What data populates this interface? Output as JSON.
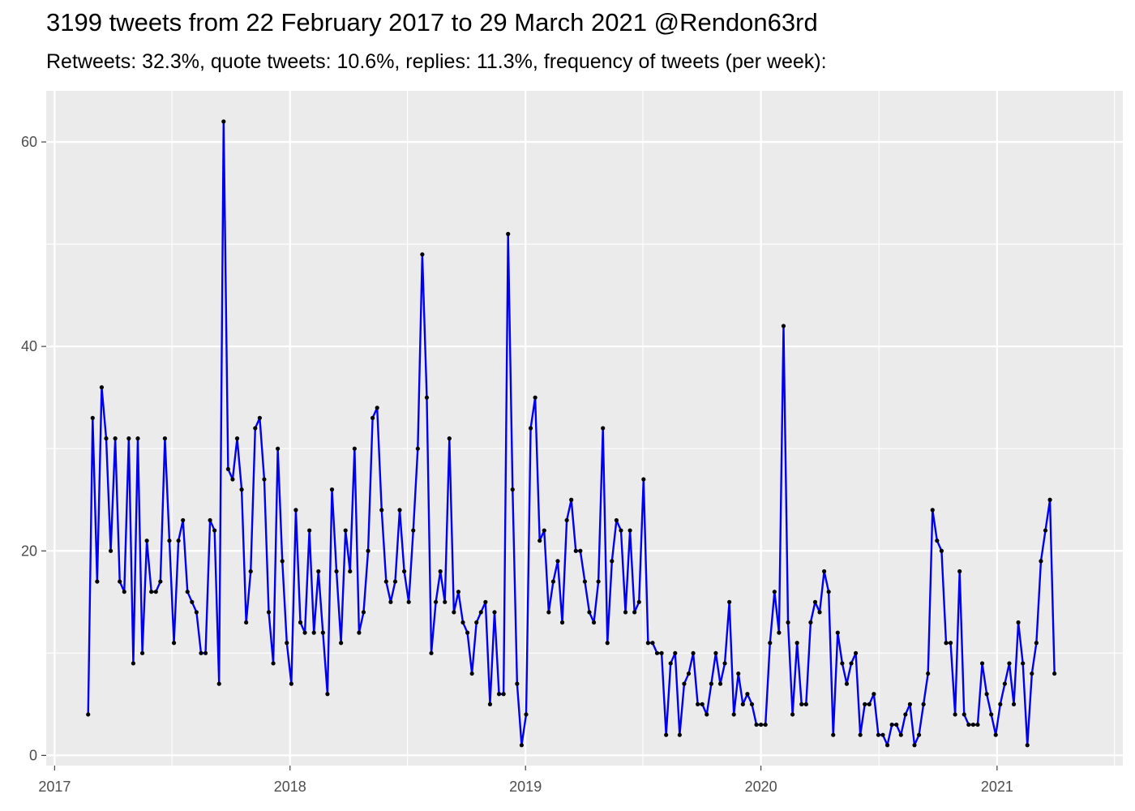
{
  "chart_data": {
    "type": "line",
    "title": "3199 tweets from 22 February 2017 to 29 March 2021 @Rendon63rd",
    "subtitle": "Retweets: 32.3%, quote tweets: 10.6%, replies: 11.3%, frequency of tweets (per week):",
    "xlabel": "",
    "ylabel": "",
    "x_ticks": [
      "2017",
      "2018",
      "2019",
      "2020",
      "2021"
    ],
    "y_ticks": [
      "0",
      "20",
      "40",
      "60"
    ],
    "ylim": [
      -1,
      65
    ],
    "xlim": [
      "2016-12-19",
      "2021-07-15"
    ],
    "grid": true,
    "colors": {
      "line": "#0000ee",
      "point": "#000000",
      "panel": "#ebebeb",
      "gridline": "#ffffff"
    },
    "series": [
      {
        "start_week": "2017-02-22",
        "values": [
          4,
          33,
          17,
          36,
          31,
          20,
          31,
          17,
          16,
          31,
          9,
          31,
          10,
          21,
          16,
          16,
          17,
          31,
          21,
          11,
          21,
          23,
          16,
          15,
          14,
          10,
          10,
          23,
          22,
          7,
          62,
          28,
          27,
          31,
          26,
          13,
          18,
          32,
          33,
          27,
          14,
          9,
          30,
          19,
          11,
          7,
          24,
          13,
          12,
          22,
          12,
          18,
          12,
          6,
          26,
          18,
          11,
          22,
          18,
          30,
          12,
          14,
          20,
          33,
          34,
          24,
          17,
          15,
          17,
          24,
          18,
          15,
          22,
          30,
          49,
          35,
          10,
          15,
          18,
          15,
          31,
          14,
          16,
          13,
          12,
          8,
          13,
          14,
          15,
          5,
          14,
          6,
          6,
          51,
          26,
          7,
          1,
          4,
          32,
          35,
          21,
          22,
          14,
          17,
          19,
          13,
          23,
          25,
          20,
          20,
          17,
          14,
          13,
          17,
          32,
          11,
          19,
          23,
          22,
          14,
          22,
          14,
          15,
          27,
          11,
          11,
          10,
          10,
          2,
          9,
          10,
          2,
          7,
          8,
          10,
          5,
          5,
          4,
          7,
          10,
          7,
          9,
          15,
          4,
          8,
          5,
          6,
          5,
          3,
          3,
          3,
          11,
          16,
          12,
          42,
          13,
          4,
          11,
          5,
          5,
          13,
          15,
          14,
          18,
          16,
          2,
          12,
          9,
          7,
          9,
          10,
          2,
          5,
          5,
          6,
          2,
          2,
          1,
          3,
          3,
          2,
          4,
          5,
          1,
          2,
          5,
          8,
          24,
          21,
          20,
          11,
          11,
          4,
          18,
          4,
          3,
          3,
          3,
          9,
          6,
          4,
          2,
          5,
          7,
          9,
          5,
          13,
          9,
          1,
          8,
          11,
          19,
          22,
          25,
          8
        ]
      }
    ]
  }
}
